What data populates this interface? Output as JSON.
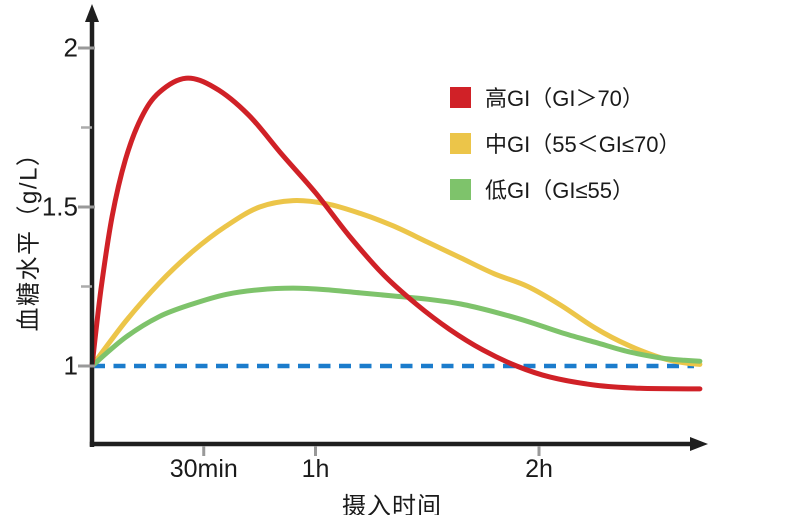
{
  "axes": {
    "y_title": "血糖水平（g/L）",
    "x_title": "摄入时间",
    "y_ticks": [
      {
        "value": 2,
        "label": "2",
        "minor": false
      },
      {
        "value": 1.75,
        "label": "",
        "minor": true
      },
      {
        "value": 1.5,
        "label": "1.5",
        "minor": false
      },
      {
        "value": 1.25,
        "label": "",
        "minor": true
      },
      {
        "value": 1,
        "label": "1",
        "minor": false
      }
    ],
    "x_ticks": [
      {
        "t": 0.5,
        "label": "30min"
      },
      {
        "t": 1,
        "label": "1h"
      },
      {
        "t": 2,
        "label": "2h"
      }
    ]
  },
  "legend": [
    {
      "id": "high-gi",
      "label": "高GI（GI＞70）",
      "color": "#d02127"
    },
    {
      "id": "mid-gi",
      "label": "中GI（55＜GI≤70）",
      "color": "#ecc549"
    },
    {
      "id": "low-gi",
      "label": "低GI（GI≤55）",
      "color": "#7ec36b"
    }
  ],
  "baseline": {
    "value": 1,
    "color": "#1b7ccc",
    "style": "dashed"
  },
  "colors": {
    "axis": "#1f1f1f",
    "tick": "#999999",
    "minor_tick": "#ababab",
    "text": "#1a1a1a"
  },
  "chart_data": {
    "type": "line",
    "title": "",
    "xlabel": "摄入时间",
    "ylabel": "血糖水平（g/L）",
    "x_unit": "hours",
    "xlim": [
      0,
      2.76
    ],
    "ylim": [
      0.78,
      2.1
    ],
    "y_axis_tick_values": [
      1,
      1.25,
      1.5,
      1.75,
      2
    ],
    "x_axis_tick_labels": [
      "30min",
      "1h",
      "2h"
    ],
    "x_axis_tick_hours": [
      0.5,
      1,
      2
    ],
    "grid": false,
    "legend_position": "upper right",
    "baseline_value": 1,
    "series": [
      {
        "name": "高GI（GI＞70）",
        "color": "#d02127",
        "peak": {
          "t_hours": 0.42,
          "value": 1.9
        },
        "points": [
          [
            0,
            1.0
          ],
          [
            0.04,
            1.24
          ],
          [
            0.09,
            1.47
          ],
          [
            0.15,
            1.65
          ],
          [
            0.22,
            1.78
          ],
          [
            0.3,
            1.86
          ],
          [
            0.42,
            1.905
          ],
          [
            0.55,
            1.875
          ],
          [
            0.7,
            1.79
          ],
          [
            0.85,
            1.665
          ],
          [
            1.0,
            1.545
          ],
          [
            1.15,
            1.41
          ],
          [
            1.3,
            1.29
          ],
          [
            1.45,
            1.195
          ],
          [
            1.6,
            1.115
          ],
          [
            1.75,
            1.05
          ],
          [
            1.9,
            1.0
          ],
          [
            2.05,
            0.965
          ],
          [
            2.25,
            0.94
          ],
          [
            2.45,
            0.93
          ],
          [
            2.72,
            0.928
          ]
        ]
      },
      {
        "name": "中GI（55＜GI≤70）",
        "color": "#ecc549",
        "peak": {
          "t_hours": 0.9,
          "value": 1.52
        },
        "points": [
          [
            0,
            1.0
          ],
          [
            0.15,
            1.14
          ],
          [
            0.3,
            1.26
          ],
          [
            0.45,
            1.36
          ],
          [
            0.6,
            1.44
          ],
          [
            0.75,
            1.5
          ],
          [
            0.9,
            1.52
          ],
          [
            1.05,
            1.51
          ],
          [
            1.2,
            1.48
          ],
          [
            1.35,
            1.44
          ],
          [
            1.5,
            1.39
          ],
          [
            1.65,
            1.34
          ],
          [
            1.8,
            1.29
          ],
          [
            1.95,
            1.25
          ],
          [
            2.1,
            1.19
          ],
          [
            2.25,
            1.12
          ],
          [
            2.4,
            1.065
          ],
          [
            2.55,
            1.025
          ],
          [
            2.65,
            1.01
          ],
          [
            2.72,
            1.005
          ]
        ]
      },
      {
        "name": "低GI（GI≤55）",
        "color": "#7ec36b",
        "peak": {
          "t_hours": 0.9,
          "value": 1.25
        },
        "points": [
          [
            0,
            1.0
          ],
          [
            0.15,
            1.09
          ],
          [
            0.3,
            1.155
          ],
          [
            0.45,
            1.195
          ],
          [
            0.6,
            1.225
          ],
          [
            0.75,
            1.24
          ],
          [
            0.9,
            1.245
          ],
          [
            1.05,
            1.24
          ],
          [
            1.2,
            1.23
          ],
          [
            1.35,
            1.22
          ],
          [
            1.5,
            1.21
          ],
          [
            1.65,
            1.195
          ],
          [
            1.8,
            1.17
          ],
          [
            1.95,
            1.14
          ],
          [
            2.1,
            1.105
          ],
          [
            2.25,
            1.075
          ],
          [
            2.4,
            1.045
          ],
          [
            2.55,
            1.025
          ],
          [
            2.65,
            1.018
          ],
          [
            2.72,
            1.015
          ]
        ]
      }
    ]
  }
}
